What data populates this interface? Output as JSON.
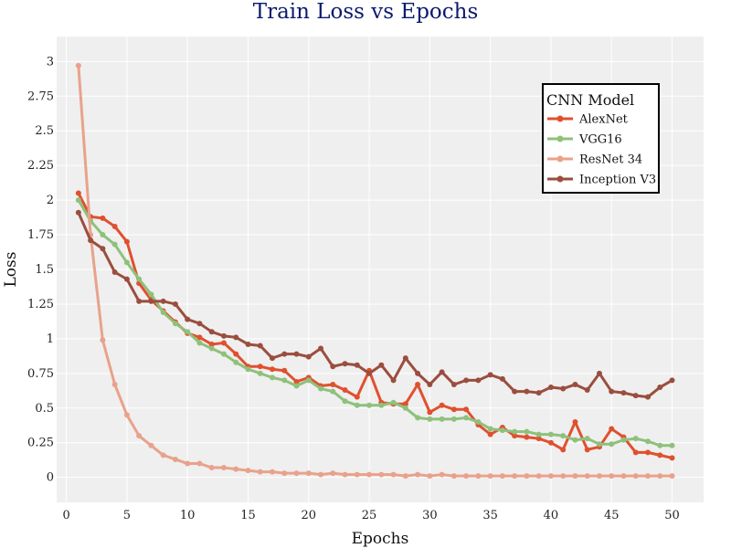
{
  "chart_data": {
    "type": "line",
    "title": "Train Loss vs Epochs",
    "xlabel": "Epochs",
    "ylabel": "Loss",
    "xlim": [
      -0.8,
      52.6
    ],
    "ylim": [
      -0.18,
      3.18
    ],
    "xticks": [
      0,
      5,
      10,
      15,
      20,
      25,
      30,
      35,
      40,
      45,
      50
    ],
    "yticks": [
      0,
      0.25,
      0.5,
      0.75,
      1,
      1.25,
      1.5,
      1.75,
      2,
      2.25,
      2.5,
      2.75,
      3
    ],
    "ytick_labels": [
      "0",
      "0.25",
      "0.5",
      "0.75",
      "1",
      "1.25",
      "1.5",
      "1.75",
      "2",
      "2.25",
      "2.5",
      "2.75",
      "3"
    ],
    "grid": true,
    "legend": {
      "title": "CNN Model",
      "position": "top-right"
    },
    "x": [
      1,
      2,
      3,
      4,
      5,
      6,
      7,
      8,
      9,
      10,
      11,
      12,
      13,
      14,
      15,
      16,
      17,
      18,
      19,
      20,
      21,
      22,
      23,
      24,
      25,
      26,
      27,
      28,
      29,
      30,
      31,
      32,
      33,
      34,
      35,
      36,
      37,
      38,
      39,
      40,
      41,
      42,
      43,
      44,
      45,
      46,
      47,
      48,
      49,
      50
    ],
    "series": [
      {
        "name": "AlexNet",
        "color": "#e0502f",
        "values": [
          2.05,
          1.88,
          1.87,
          1.81,
          1.7,
          1.4,
          1.28,
          1.2,
          1.12,
          1.04,
          1.01,
          0.96,
          0.97,
          0.89,
          0.8,
          0.8,
          0.78,
          0.77,
          0.69,
          0.72,
          0.66,
          0.67,
          0.63,
          0.58,
          0.77,
          0.54,
          0.53,
          0.53,
          0.67,
          0.47,
          0.52,
          0.49,
          0.49,
          0.38,
          0.31,
          0.36,
          0.3,
          0.29,
          0.28,
          0.25,
          0.2,
          0.4,
          0.2,
          0.22,
          0.35,
          0.29,
          0.18,
          0.18,
          0.16,
          0.14
        ]
      },
      {
        "name": "VGG16",
        "color": "#8ec17b",
        "values": [
          2.0,
          1.85,
          1.75,
          1.68,
          1.55,
          1.43,
          1.32,
          1.19,
          1.11,
          1.05,
          0.97,
          0.93,
          0.89,
          0.83,
          0.78,
          0.75,
          0.72,
          0.7,
          0.66,
          0.7,
          0.64,
          0.62,
          0.55,
          0.52,
          0.52,
          0.52,
          0.54,
          0.5,
          0.43,
          0.42,
          0.42,
          0.42,
          0.43,
          0.4,
          0.35,
          0.34,
          0.33,
          0.33,
          0.31,
          0.31,
          0.3,
          0.27,
          0.28,
          0.24,
          0.24,
          0.27,
          0.28,
          0.26,
          0.23,
          0.23
        ]
      },
      {
        "name": "ResNet 34",
        "color": "#e8a28b",
        "values": [
          2.97,
          1.75,
          0.99,
          0.67,
          0.45,
          0.3,
          0.23,
          0.16,
          0.13,
          0.1,
          0.1,
          0.07,
          0.07,
          0.06,
          0.05,
          0.04,
          0.04,
          0.03,
          0.03,
          0.03,
          0.02,
          0.03,
          0.02,
          0.02,
          0.02,
          0.02,
          0.02,
          0.01,
          0.02,
          0.01,
          0.02,
          0.01,
          0.01,
          0.01,
          0.01,
          0.01,
          0.01,
          0.01,
          0.01,
          0.01,
          0.01,
          0.01,
          0.01,
          0.01,
          0.01,
          0.01,
          0.01,
          0.01,
          0.01,
          0.01
        ]
      },
      {
        "name": "Inception V3",
        "color": "#9a4e3e",
        "values": [
          1.91,
          1.71,
          1.65,
          1.48,
          1.43,
          1.27,
          1.27,
          1.27,
          1.25,
          1.14,
          1.11,
          1.05,
          1.02,
          1.01,
          0.96,
          0.95,
          0.86,
          0.89,
          0.89,
          0.87,
          0.93,
          0.8,
          0.82,
          0.81,
          0.75,
          0.81,
          0.7,
          0.86,
          0.75,
          0.67,
          0.76,
          0.67,
          0.7,
          0.7,
          0.74,
          0.71,
          0.62,
          0.62,
          0.61,
          0.65,
          0.64,
          0.67,
          0.63,
          0.75,
          0.62,
          0.61,
          0.59,
          0.58,
          0.65,
          0.7
        ]
      }
    ]
  }
}
